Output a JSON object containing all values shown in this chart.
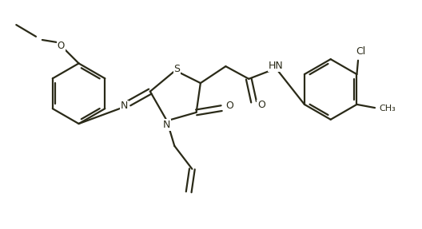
{
  "background_color": "#ffffff",
  "line_color": "#2a2a18",
  "line_width": 1.6,
  "figsize": [
    5.28,
    2.87
  ],
  "dpi": 100,
  "xlim": [
    0,
    10
  ],
  "ylim": [
    0,
    5.4
  ]
}
